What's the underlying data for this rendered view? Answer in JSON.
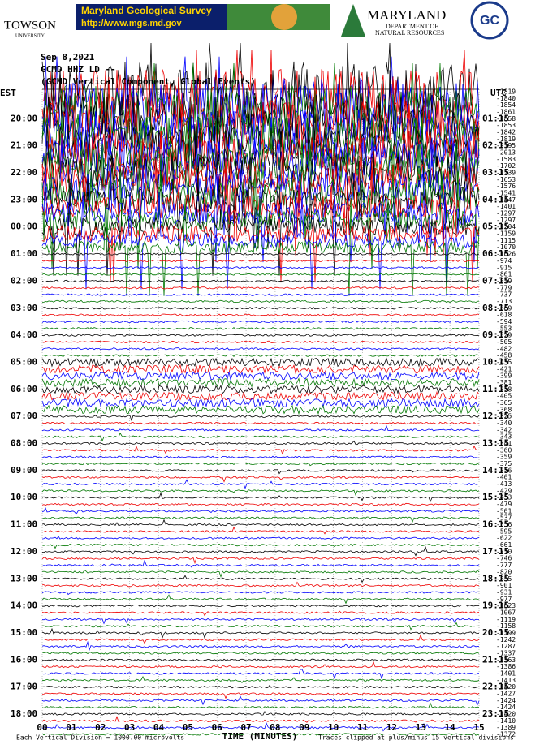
{
  "header": {
    "towson": "TOWSON",
    "towson_sub": "UNIVERSITY",
    "mgs_title": "Maryland Geological Survey",
    "mgs_url": "http://www.mgs.md.gov",
    "dnr_title": "MARYLAND",
    "dnr_sub1": "DEPARTMENT OF",
    "dnr_sub2": "NATURAL RESOURCES",
    "gc": "GC"
  },
  "plot": {
    "date": "Sep 8,2021",
    "station": "GCMD HHZ LD --",
    "description": "(GCMD Vertical Component, Global Events)",
    "left_header": "EST",
    "right_header": "UTC",
    "left_times": [
      "20:00",
      "21:00",
      "22:00",
      "23:00",
      "00:00",
      "01:00",
      "02:00",
      "03:00",
      "04:00",
      "05:00",
      "06:00",
      "07:00",
      "08:00",
      "09:00",
      "10:00",
      "11:00",
      "12:00",
      "13:00",
      "14:00",
      "15:00",
      "16:00",
      "17:00",
      "18:00"
    ],
    "right_times": [
      "01:15",
      "02:15",
      "03:15",
      "04:15",
      "05:15",
      "06:15",
      "07:15",
      "08:15",
      "09:15",
      "10:15",
      "11:15",
      "12:15",
      "13:15",
      "14:15",
      "15:15",
      "16:15",
      "17:15",
      "18:15",
      "19:15",
      "20:15",
      "21:15",
      "22:15",
      "23:15"
    ],
    "trace_offsets": [
      -1819,
      -1840,
      -1854,
      -1861,
      -1858,
      -1853,
      -1842,
      -1819,
      -2195,
      -2013,
      -1583,
      -1702,
      -1739,
      -1653,
      -1576,
      -1541,
      -1447,
      -1401,
      -1297,
      -1297,
      -1204,
      -1159,
      -1115,
      -1070,
      -1026,
      -974,
      -915,
      -861,
      -829,
      -779,
      -737,
      -713,
      -669,
      -618,
      -594,
      -553,
      -529,
      -505,
      -482,
      -458,
      -435,
      -421,
      -399,
      -381,
      -378,
      -405,
      -365,
      -368,
      -325,
      -340,
      -342,
      -343,
      -341,
      -360,
      -359,
      -375,
      -376,
      -401,
      -413,
      -429,
      -453,
      -479,
      -501,
      -537,
      -556,
      -595,
      -622,
      -661,
      -710,
      -746,
      -777,
      -820,
      -855,
      -901,
      -931,
      -977,
      -1023,
      -1067,
      -1119,
      -1158,
      -1199,
      -1242,
      -1287,
      -1337,
      -1363,
      -1386,
      -1401,
      -1413,
      -1420,
      -1427,
      -1424,
      -1424,
      -1420,
      -1410,
      -1389,
      -1372
    ],
    "x_labels": [
      "00",
      "01",
      "02",
      "03",
      "04",
      "05",
      "06",
      "07",
      "08",
      "09",
      "10",
      "11",
      "12",
      "13",
      "14",
      "15"
    ],
    "x_axis_label": "TIME (MINUTES)",
    "footer_left": "Each Vertical Division = 1000.00 microvolts",
    "footer_right": "Traces clipped at plus/minus 15 vertical divisions"
  }
}
